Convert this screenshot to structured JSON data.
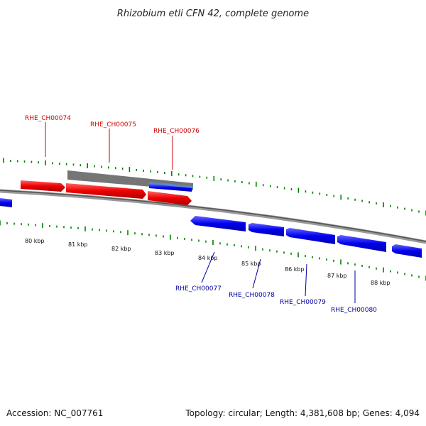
{
  "title": "Rhizobium etli CFN 42, complete genome",
  "footer": {
    "accession": "Accession: NC_007761",
    "summary": "Topology: circular; Length: 4,381,608 bp; Genes: 4,094"
  },
  "kbp_labels": [
    "80 kbp",
    "81 kbp",
    "82 kbp",
    "83 kbp",
    "84 kbp",
    "85 kbp",
    "86 kbp",
    "87 kbp",
    "88 kbp"
  ],
  "genes_top": [
    "RHE_CH00074",
    "RHE_CH00075",
    "RHE_CH00076"
  ],
  "genes_bottom": [
    "RHE_CH00077",
    "RHE_CH00078",
    "RHE_CH00079",
    "RHE_CH00080"
  ],
  "colors": {
    "forward": "#ff0000",
    "reverse": "#0000ff",
    "tick": "#008000",
    "backbone": "#808080",
    "top_label": "#cc0000",
    "bottom_label": "#000099",
    "highlight": "#666666"
  }
}
